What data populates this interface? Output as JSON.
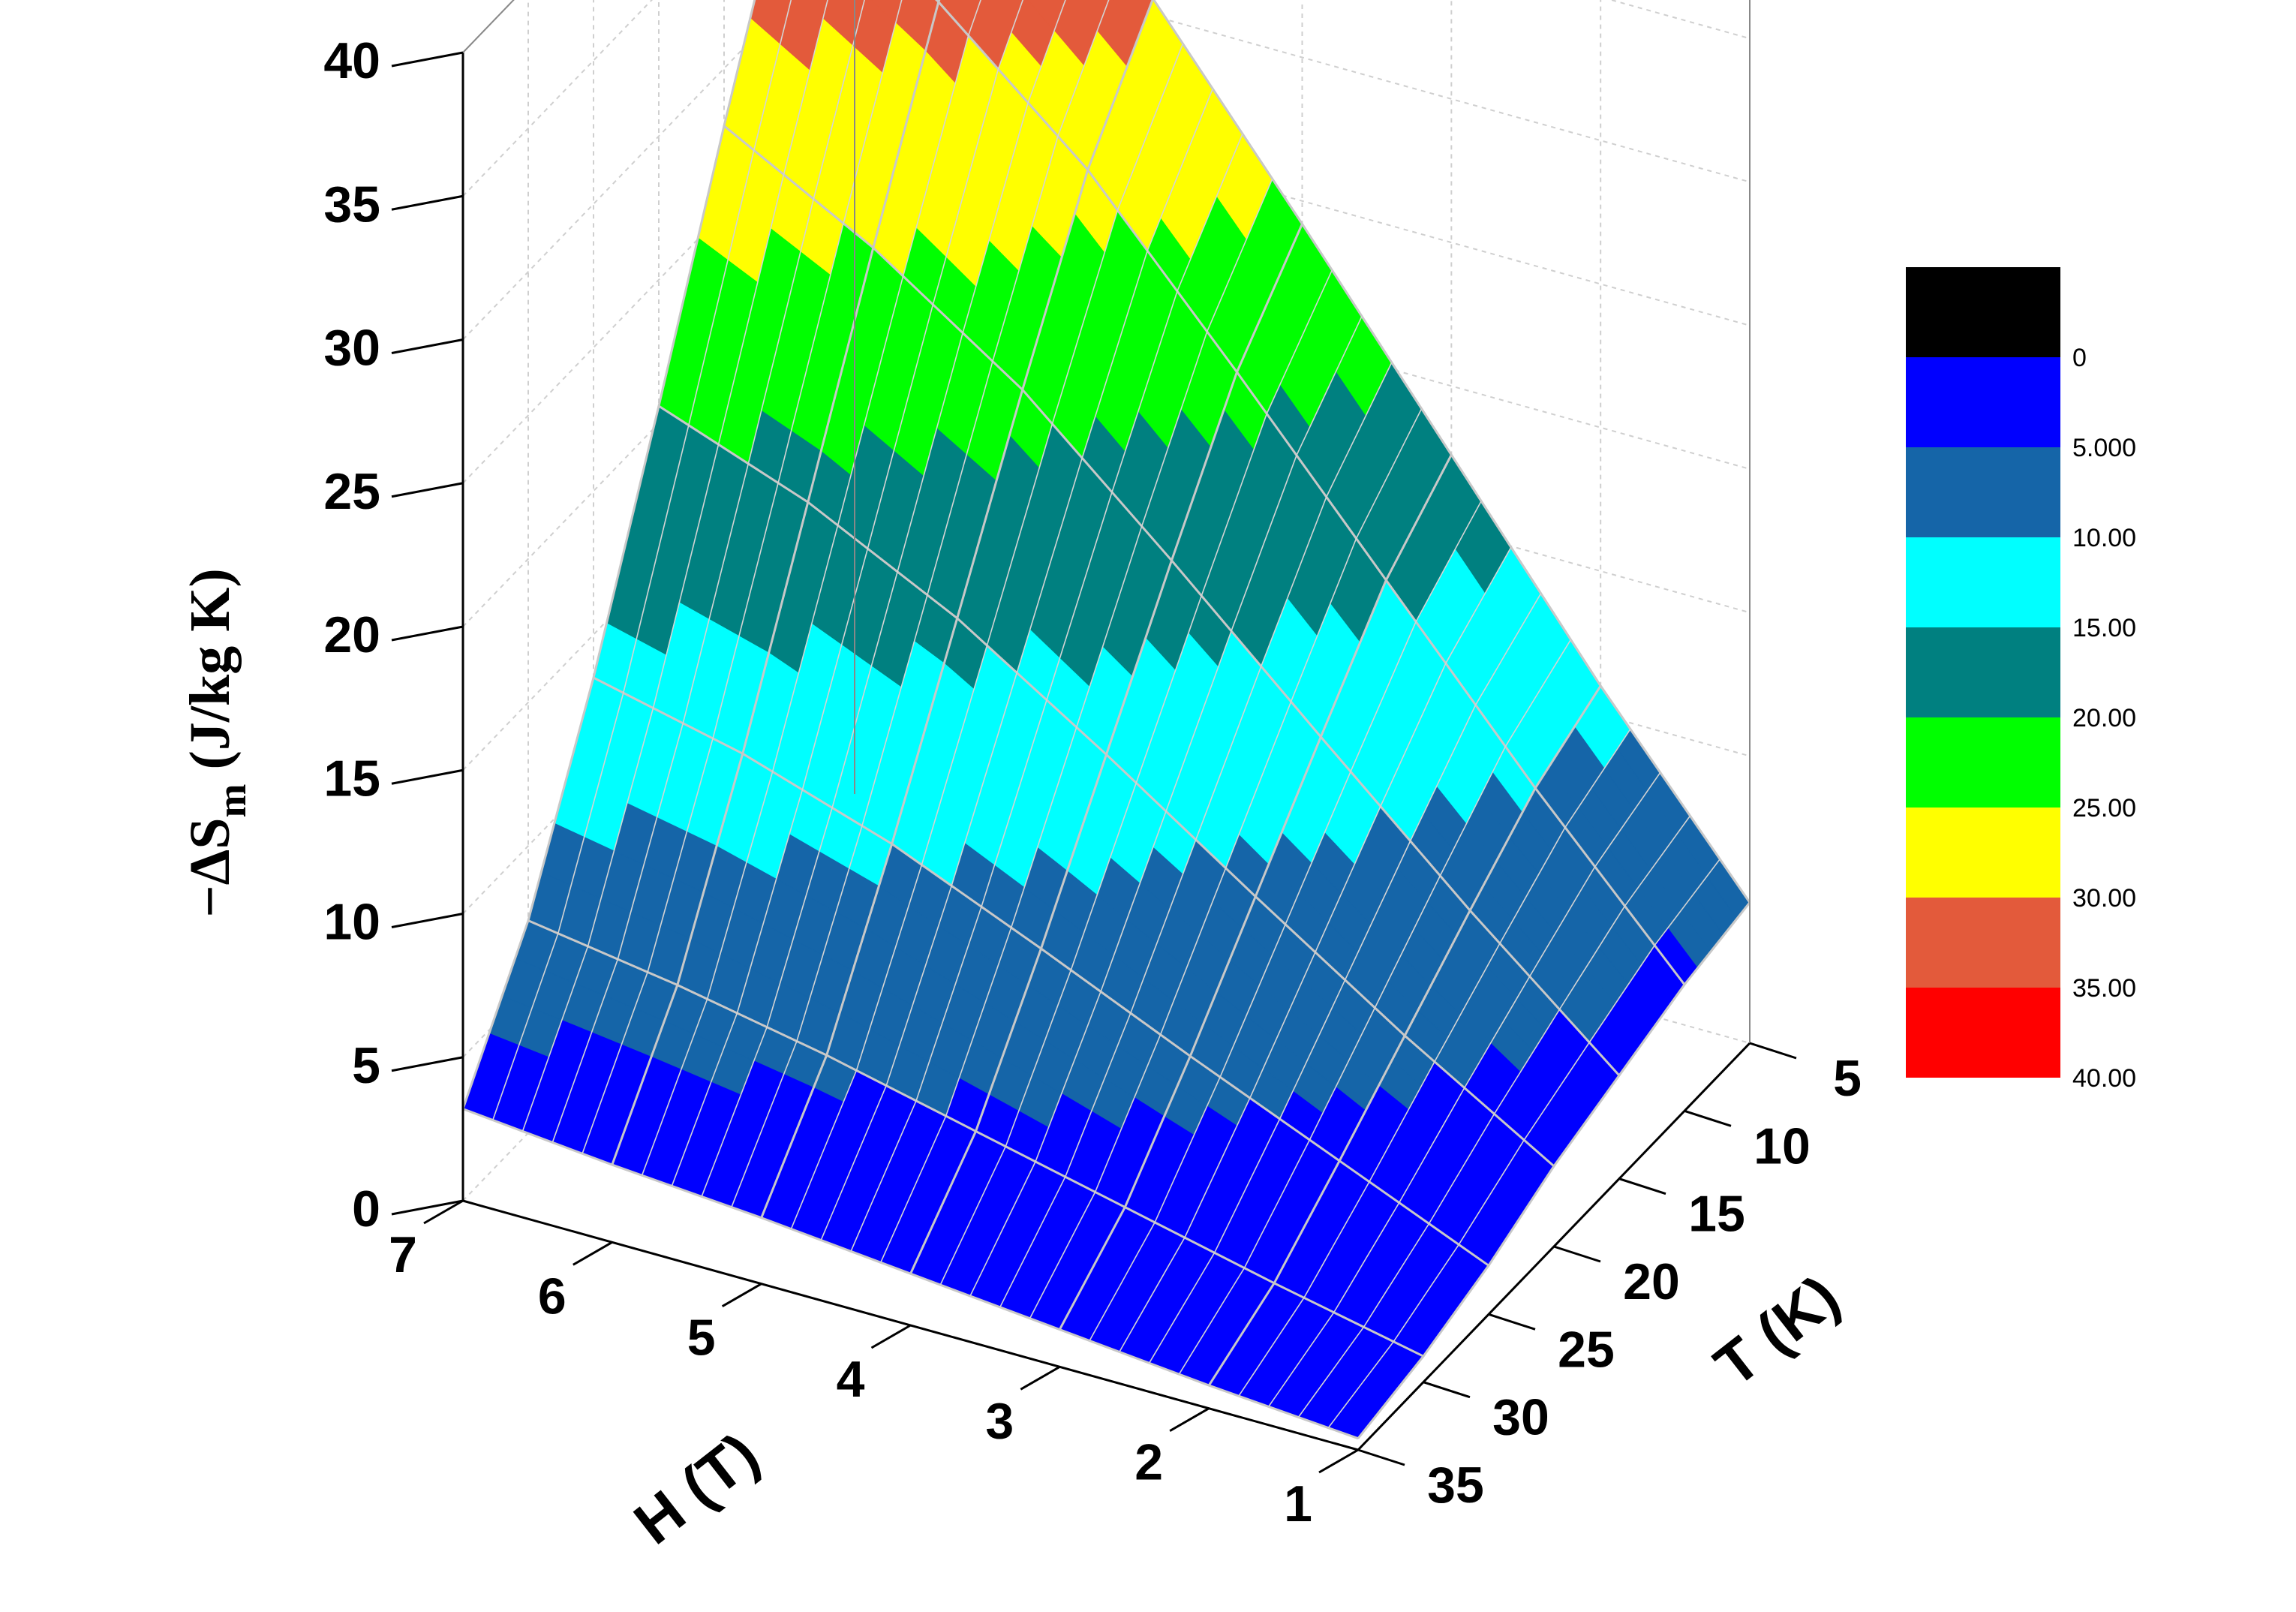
{
  "chart_data": {
    "type": "surface3d",
    "z_axis": {
      "title_prefix": "−ΔS",
      "title_sub": "m",
      "title_suffix": " (J/kg K)",
      "range": [
        0,
        40
      ],
      "ticks": [
        "0",
        "5",
        "10",
        "15",
        "20",
        "25",
        "30",
        "35",
        "40"
      ]
    },
    "h_axis": {
      "title": "H (T)",
      "range": [
        1,
        7
      ],
      "ticks": [
        "1",
        "2",
        "3",
        "4",
        "5",
        "6",
        "7"
      ]
    },
    "t_axis": {
      "title": "T (K)",
      "range": [
        5,
        35
      ],
      "ticks": [
        "5",
        "10",
        "15",
        "20",
        "25",
        "30",
        "35"
      ]
    },
    "grid": true,
    "colorbar": {
      "labels": [
        "0",
        "5.000",
        "10.00",
        "15.00",
        "20.00",
        "25.00",
        "30.00",
        "35.00",
        "40.00"
      ],
      "colors": [
        "#000000",
        "#0000FF",
        "#1565A8",
        "#00FFFF",
        "#008080",
        "#00FF00",
        "#FFFF00",
        "#E35A3B",
        "#FF0000"
      ]
    },
    "surface": {
      "H": [
        1,
        2,
        3,
        4,
        5,
        6,
        7
      ],
      "T": [
        5,
        10,
        15,
        20,
        25,
        30,
        35
      ],
      "z_rows_by_H": [
        [
          4.9,
          4.4,
          3.6,
          2.8,
          1.7,
          0.9,
          0.4
        ],
        [
          11.0,
          9.8,
          7.9,
          5.9,
          3.9,
          2.0,
          0.8
        ],
        [
          17.6,
          15.6,
          12.5,
          9.3,
          6.1,
          3.2,
          1.3
        ],
        [
          24.2,
          21.4,
          17.2,
          12.8,
          8.4,
          4.4,
          1.8
        ],
        [
          30.6,
          27.0,
          21.7,
          16.1,
          10.6,
          5.6,
          2.3
        ],
        [
          35.7,
          31.4,
          25.2,
          18.7,
          12.3,
          6.6,
          2.7
        ],
        [
          40.0,
          35.0,
          28.0,
          20.6,
          13.5,
          7.4,
          3.2
        ]
      ]
    }
  }
}
